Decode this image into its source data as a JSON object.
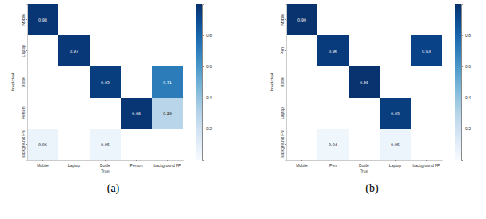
{
  "chart_data": [
    {
      "type": "heatmap",
      "title": "(a)",
      "x_label": "True",
      "y_label": "Predicted",
      "x_categories": [
        "Mobile",
        "Laptop",
        "Bottle",
        "Person",
        "background FP"
      ],
      "y_categories": [
        "Mobile",
        "Laptop",
        "Bottle",
        "Person",
        "background FN"
      ],
      "cells": [
        [
          0.98,
          null,
          null,
          null,
          null
        ],
        [
          null,
          0.97,
          null,
          null,
          null
        ],
        [
          null,
          null,
          0.95,
          null,
          0.71
        ],
        [
          null,
          null,
          null,
          0.98,
          0.29
        ],
        [
          0.06,
          null,
          0.05,
          null,
          null
        ]
      ],
      "data_labels": true,
      "color_range": [
        0,
        1
      ],
      "color_ticks": [
        0.2,
        0.4,
        0.6,
        0.8
      ]
    },
    {
      "type": "heatmap",
      "title": "(b)",
      "x_label": "True",
      "y_label": "Predicted",
      "x_categories": [
        "Mobile",
        "Pen",
        "Bottle",
        "Laptop",
        "background FP"
      ],
      "y_categories": [
        "Mobile",
        "Pen",
        "Bottle",
        "Laptop",
        "background FN"
      ],
      "cells": [
        [
          0.99,
          null,
          null,
          null,
          null
        ],
        [
          null,
          0.96,
          null,
          null,
          0.93
        ],
        [
          null,
          null,
          0.99,
          null,
          null
        ],
        [
          null,
          null,
          null,
          0.95,
          null
        ],
        [
          null,
          0.04,
          null,
          0.05,
          null
        ]
      ],
      "data_labels": true,
      "color_range": [
        0,
        1
      ],
      "color_ticks": [
        0.2,
        0.4,
        0.6,
        0.8
      ]
    }
  ]
}
